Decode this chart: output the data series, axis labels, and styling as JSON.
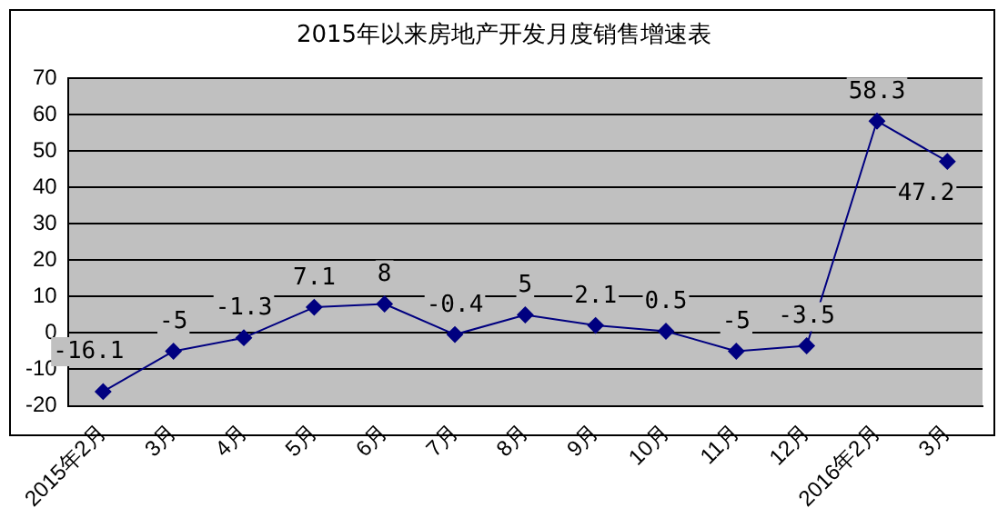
{
  "chart_data": {
    "type": "line",
    "title": "2015年以来房地产开发月度销售增速表",
    "categories": [
      "2015年2月",
      "3月",
      "4月",
      "5月",
      "6月",
      "7月",
      "8月",
      "9月",
      "10月",
      "11月",
      "12月",
      "2016年2月",
      "3月"
    ],
    "series": [
      {
        "color": "#000080",
        "values": [
          -16.1,
          -5,
          -1.3,
          7.1,
          8,
          -0.4,
          5,
          2.1,
          0.5,
          -5,
          -3.5,
          58.3,
          47.2
        ]
      }
    ],
    "ylim": [
      -20,
      70
    ],
    "yticks": [
      -20,
      -10,
      0,
      10,
      20,
      30,
      40,
      50,
      60,
      70
    ],
    "grid": "y",
    "legend": false,
    "marker": "diamond",
    "line_style": "solid",
    "data_labels": true
  }
}
